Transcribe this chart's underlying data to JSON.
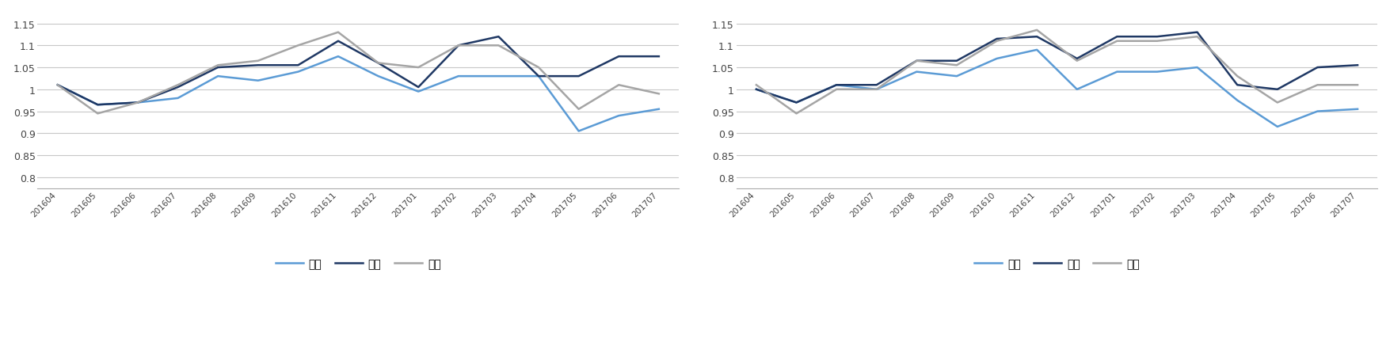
{
  "x_labels": [
    "201604",
    "201605",
    "201606",
    "201607",
    "201608",
    "201609",
    "201610",
    "201611",
    "201612",
    "201701",
    "201702",
    "201703",
    "201704",
    "201705",
    "201706",
    "201707"
  ],
  "chart1": {
    "short": [
      1.01,
      0.965,
      0.97,
      0.98,
      1.03,
      1.02,
      1.04,
      1.075,
      1.03,
      0.995,
      1.03,
      1.03,
      1.03,
      0.905,
      0.94,
      0.955
    ],
    "neutral": [
      1.01,
      0.965,
      0.97,
      1.005,
      1.05,
      1.055,
      1.055,
      1.11,
      1.06,
      1.005,
      1.1,
      1.12,
      1.03,
      1.03,
      1.075,
      1.075
    ],
    "long": [
      1.01,
      0.945,
      0.97,
      1.01,
      1.055,
      1.065,
      1.1,
      1.13,
      1.06,
      1.05,
      1.1,
      1.1,
      1.05,
      0.955,
      1.01,
      0.99
    ]
  },
  "chart2": {
    "short": [
      1.0,
      0.97,
      1.01,
      1.0,
      1.04,
      1.03,
      1.07,
      1.09,
      1.0,
      1.04,
      1.04,
      1.05,
      0.975,
      0.915,
      0.95,
      0.955
    ],
    "neutral": [
      1.0,
      0.97,
      1.01,
      1.01,
      1.065,
      1.065,
      1.115,
      1.12,
      1.07,
      1.12,
      1.12,
      1.13,
      1.01,
      1.0,
      1.05,
      1.055
    ],
    "long": [
      1.01,
      0.945,
      1.0,
      1.0,
      1.065,
      1.055,
      1.11,
      1.135,
      1.065,
      1.11,
      1.11,
      1.12,
      1.03,
      0.97,
      1.01,
      1.01
    ]
  },
  "short_color": "#5B9BD5",
  "neutral_color": "#1F3864",
  "long_color": "#A5A5A5",
  "bg_color": "#FFFFFF",
  "grid_color": "#C8C8C8",
  "ylim": [
    0.775,
    1.175
  ],
  "yticks": [
    0.8,
    0.85,
    0.9,
    0.95,
    1.0,
    1.05,
    1.1,
    1.15
  ],
  "ytick_labels": [
    "0.8",
    "0.85",
    "0.9",
    "0.95",
    "1",
    "1.05",
    "1.1",
    "1.15"
  ],
  "legend_labels": [
    "空头",
    "中性",
    "多头"
  ],
  "line_width": 1.8
}
